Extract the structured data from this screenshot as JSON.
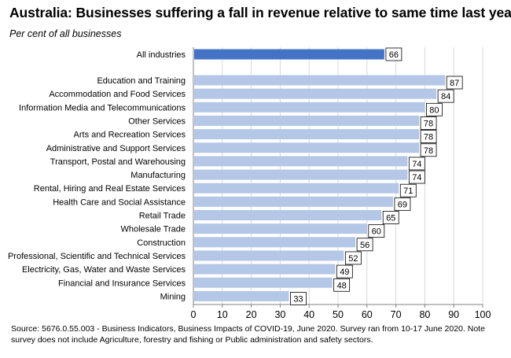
{
  "title": "Australia: Businesses suffering a fall in revenue relative to same time last year",
  "subtitle": "Per cent of all businesses",
  "source": "Source: 5676.0.55.003 - Business Indicators, Business Impacts of COVID-19, June 2020.  Survey ran from 10-17 June 2020.  Note survey does not include Agriculture, forestry and fishing or Public administration and safety sectors.",
  "colors": {
    "highlight": "#4472c4",
    "bar": "#b4c7e7",
    "grid": "#d9d9d9"
  },
  "chart_data": {
    "type": "bar",
    "orientation": "horizontal",
    "title": "Australia: Businesses suffering a fall in revenue relative to same time last year",
    "ylabel": "Per cent of all businesses",
    "xlim": [
      0,
      100
    ],
    "xticks": [
      0,
      10,
      20,
      30,
      40,
      50,
      60,
      70,
      80,
      90,
      100
    ],
    "grid": true,
    "categories": [
      "All industries",
      "Education and Training",
      "Accommodation and Food Services",
      "Information Media and Telecommunications",
      "Other Services",
      "Arts and Recreation Services",
      "Administrative and Support Services",
      "Transport, Postal and Warehousing",
      "Manufacturing",
      "Rental, Hiring and Real Estate Services",
      "Health Care and Social Assistance",
      "Retail Trade",
      "Wholesale Trade",
      "Construction",
      "Professional, Scientific and Technical Services",
      "Electricity, Gas, Water and Waste Services",
      "Financial and Insurance Services",
      "Mining"
    ],
    "values": [
      66,
      87,
      84,
      80,
      78,
      78,
      78,
      74,
      74,
      71,
      69,
      65,
      60,
      56,
      52,
      49,
      48,
      33
    ],
    "highlighted": [
      "All industries"
    ]
  }
}
